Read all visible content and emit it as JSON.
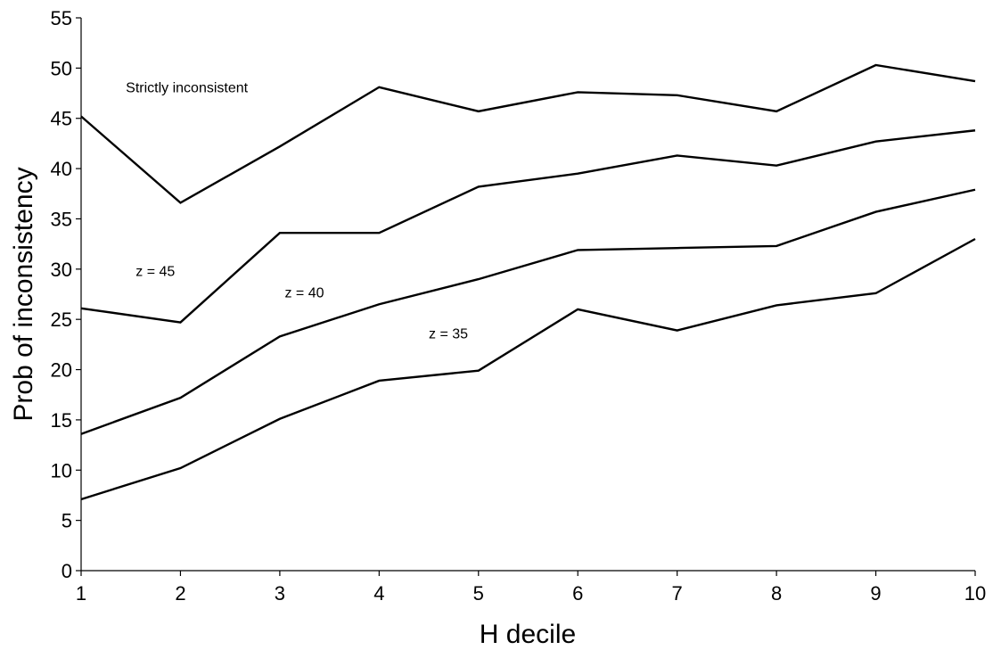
{
  "chart_data": {
    "type": "line",
    "title": "",
    "xlabel": "H decile",
    "ylabel": "Prob of inconsistency",
    "x": [
      1,
      2,
      3,
      4,
      5,
      6,
      7,
      8,
      9,
      10
    ],
    "xlim": [
      1,
      10
    ],
    "ylim": [
      0,
      55
    ],
    "yticks": [
      0,
      5,
      10,
      15,
      20,
      25,
      30,
      35,
      40,
      45,
      50,
      55
    ],
    "xticks": [
      1,
      2,
      3,
      4,
      5,
      6,
      7,
      8,
      9,
      10
    ],
    "grid": false,
    "legend": "none",
    "line_color": "#000000",
    "series": [
      {
        "id": "strictly-inconsistent",
        "values": [
          45.2,
          36.6,
          42.2,
          48.1,
          45.7,
          47.6,
          47.3,
          45.7,
          50.3,
          48.7
        ]
      },
      {
        "id": "z-45",
        "values": [
          26.1,
          24.7,
          33.6,
          33.6,
          38.2,
          39.5,
          41.3,
          40.3,
          42.7,
          43.8
        ]
      },
      {
        "id": "z-40",
        "values": [
          13.6,
          17.2,
          23.3,
          26.5,
          29.0,
          31.9,
          32.1,
          32.3,
          35.7,
          37.9
        ]
      },
      {
        "id": "z-35",
        "values": [
          7.1,
          10.2,
          15.1,
          18.9,
          19.9,
          26.0,
          23.9,
          26.4,
          27.6,
          33.0
        ]
      }
    ],
    "annotations": [
      {
        "id": "annotation-strictly-inconsistent",
        "text": "Strictly inconsistent",
        "x": 1.45,
        "y": 47.6
      },
      {
        "id": "annotation-z-45",
        "text": "z = 45",
        "x": 1.55,
        "y": 29.3
      },
      {
        "id": "annotation-z-40",
        "text": "z = 40",
        "x": 3.05,
        "y": 27.2
      },
      {
        "id": "annotation-z-35",
        "text": "z = 35",
        "x": 4.5,
        "y": 23.1
      }
    ]
  }
}
